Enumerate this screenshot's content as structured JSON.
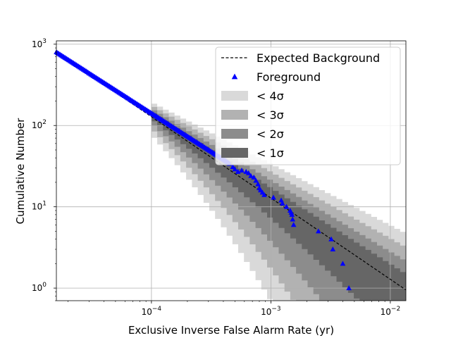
{
  "chart_data": {
    "type": "scatter",
    "x_scale": "log",
    "y_scale": "log",
    "xlim": [
      1.6e-05,
      0.0135
    ],
    "ylim": [
      0.7,
      1100
    ],
    "grid": true,
    "xlabel": "Exclusive Inverse False Alarm Rate (yr)",
    "ylabel": "Cumulative Number",
    "x_ticks": [
      {
        "value": 0.0001,
        "label": "10",
        "exp": "−4"
      },
      {
        "value": 0.001,
        "label": "10",
        "exp": "−3"
      },
      {
        "value": 0.01,
        "label": "10",
        "exp": "−2"
      }
    ],
    "y_ticks": [
      {
        "value": 1,
        "label": "10",
        "exp": "0"
      },
      {
        "value": 10,
        "label": "10",
        "exp": "1"
      },
      {
        "value": 100,
        "label": "10",
        "exp": "2"
      },
      {
        "value": 1000,
        "label": "10",
        "exp": "3"
      }
    ],
    "legend": {
      "position": "upper right",
      "entries": [
        {
          "label": "Expected Background",
          "kind": "dashed-line",
          "color": "#000000"
        },
        {
          "label": "Foreground",
          "kind": "marker",
          "color": "#0000ff"
        },
        {
          "label": "< 4σ",
          "kind": "patch",
          "color": "#d9d9d9"
        },
        {
          "label": "< 3σ",
          "kind": "patch",
          "color": "#b2b2b2"
        },
        {
          "label": "< 2σ",
          "kind": "patch",
          "color": "#8c8c8c"
        },
        {
          "label": "< 1σ",
          "kind": "patch",
          "color": "#666666"
        }
      ]
    },
    "series": [
      {
        "name": "Expected Background",
        "kind": "line",
        "color": "#000000",
        "x": [
          1.6e-05,
          0.0001,
          0.001,
          0.0135
        ],
        "y": [
          800,
          128,
          12.8,
          0.95
        ]
      },
      {
        "name": "Foreground",
        "kind": "scatter",
        "color": "#0000ff",
        "x": [
          0.00045,
          0.00048,
          0.0005,
          0.00053,
          0.00057,
          0.00062,
          0.00065,
          0.00068,
          0.00072,
          0.00075,
          0.00078,
          0.0008,
          0.00082,
          0.00085,
          0.00088,
          0.00105,
          0.00122,
          0.00125,
          0.00135,
          0.00145,
          0.00148,
          0.0015,
          0.00152,
          0.00155,
          0.0025,
          0.0032,
          0.0033,
          0.004,
          0.0045
        ],
        "y": [
          34,
          31,
          29,
          27,
          28,
          27,
          26,
          24,
          23,
          21,
          19,
          17,
          16,
          15,
          14,
          13,
          12,
          11,
          10,
          9,
          8.5,
          8,
          7,
          6,
          5,
          4,
          3,
          2,
          1
        ]
      }
    ],
    "foreground_dense_trace": {
      "x_range": [
        1.6e-05,
        0.00044
      ],
      "y_at_start": 800,
      "y_at_end": 35
    },
    "bands": [
      {
        "label": "< 4σ",
        "color": "#d9d9d9",
        "upper_factor": 1.45,
        "lower_factor": 0.55
      },
      {
        "label": "< 3σ",
        "color": "#b2b2b2",
        "upper_factor": 1.32,
        "lower_factor": 0.66
      },
      {
        "label": "< 2σ",
        "color": "#8c8c8c",
        "upper_factor": 1.2,
        "lower_factor": 0.77
      },
      {
        "label": "< 1σ",
        "color": "#666666",
        "upper_factor": 1.1,
        "lower_factor": 0.88
      }
    ],
    "band_x_start": 0.0001
  }
}
